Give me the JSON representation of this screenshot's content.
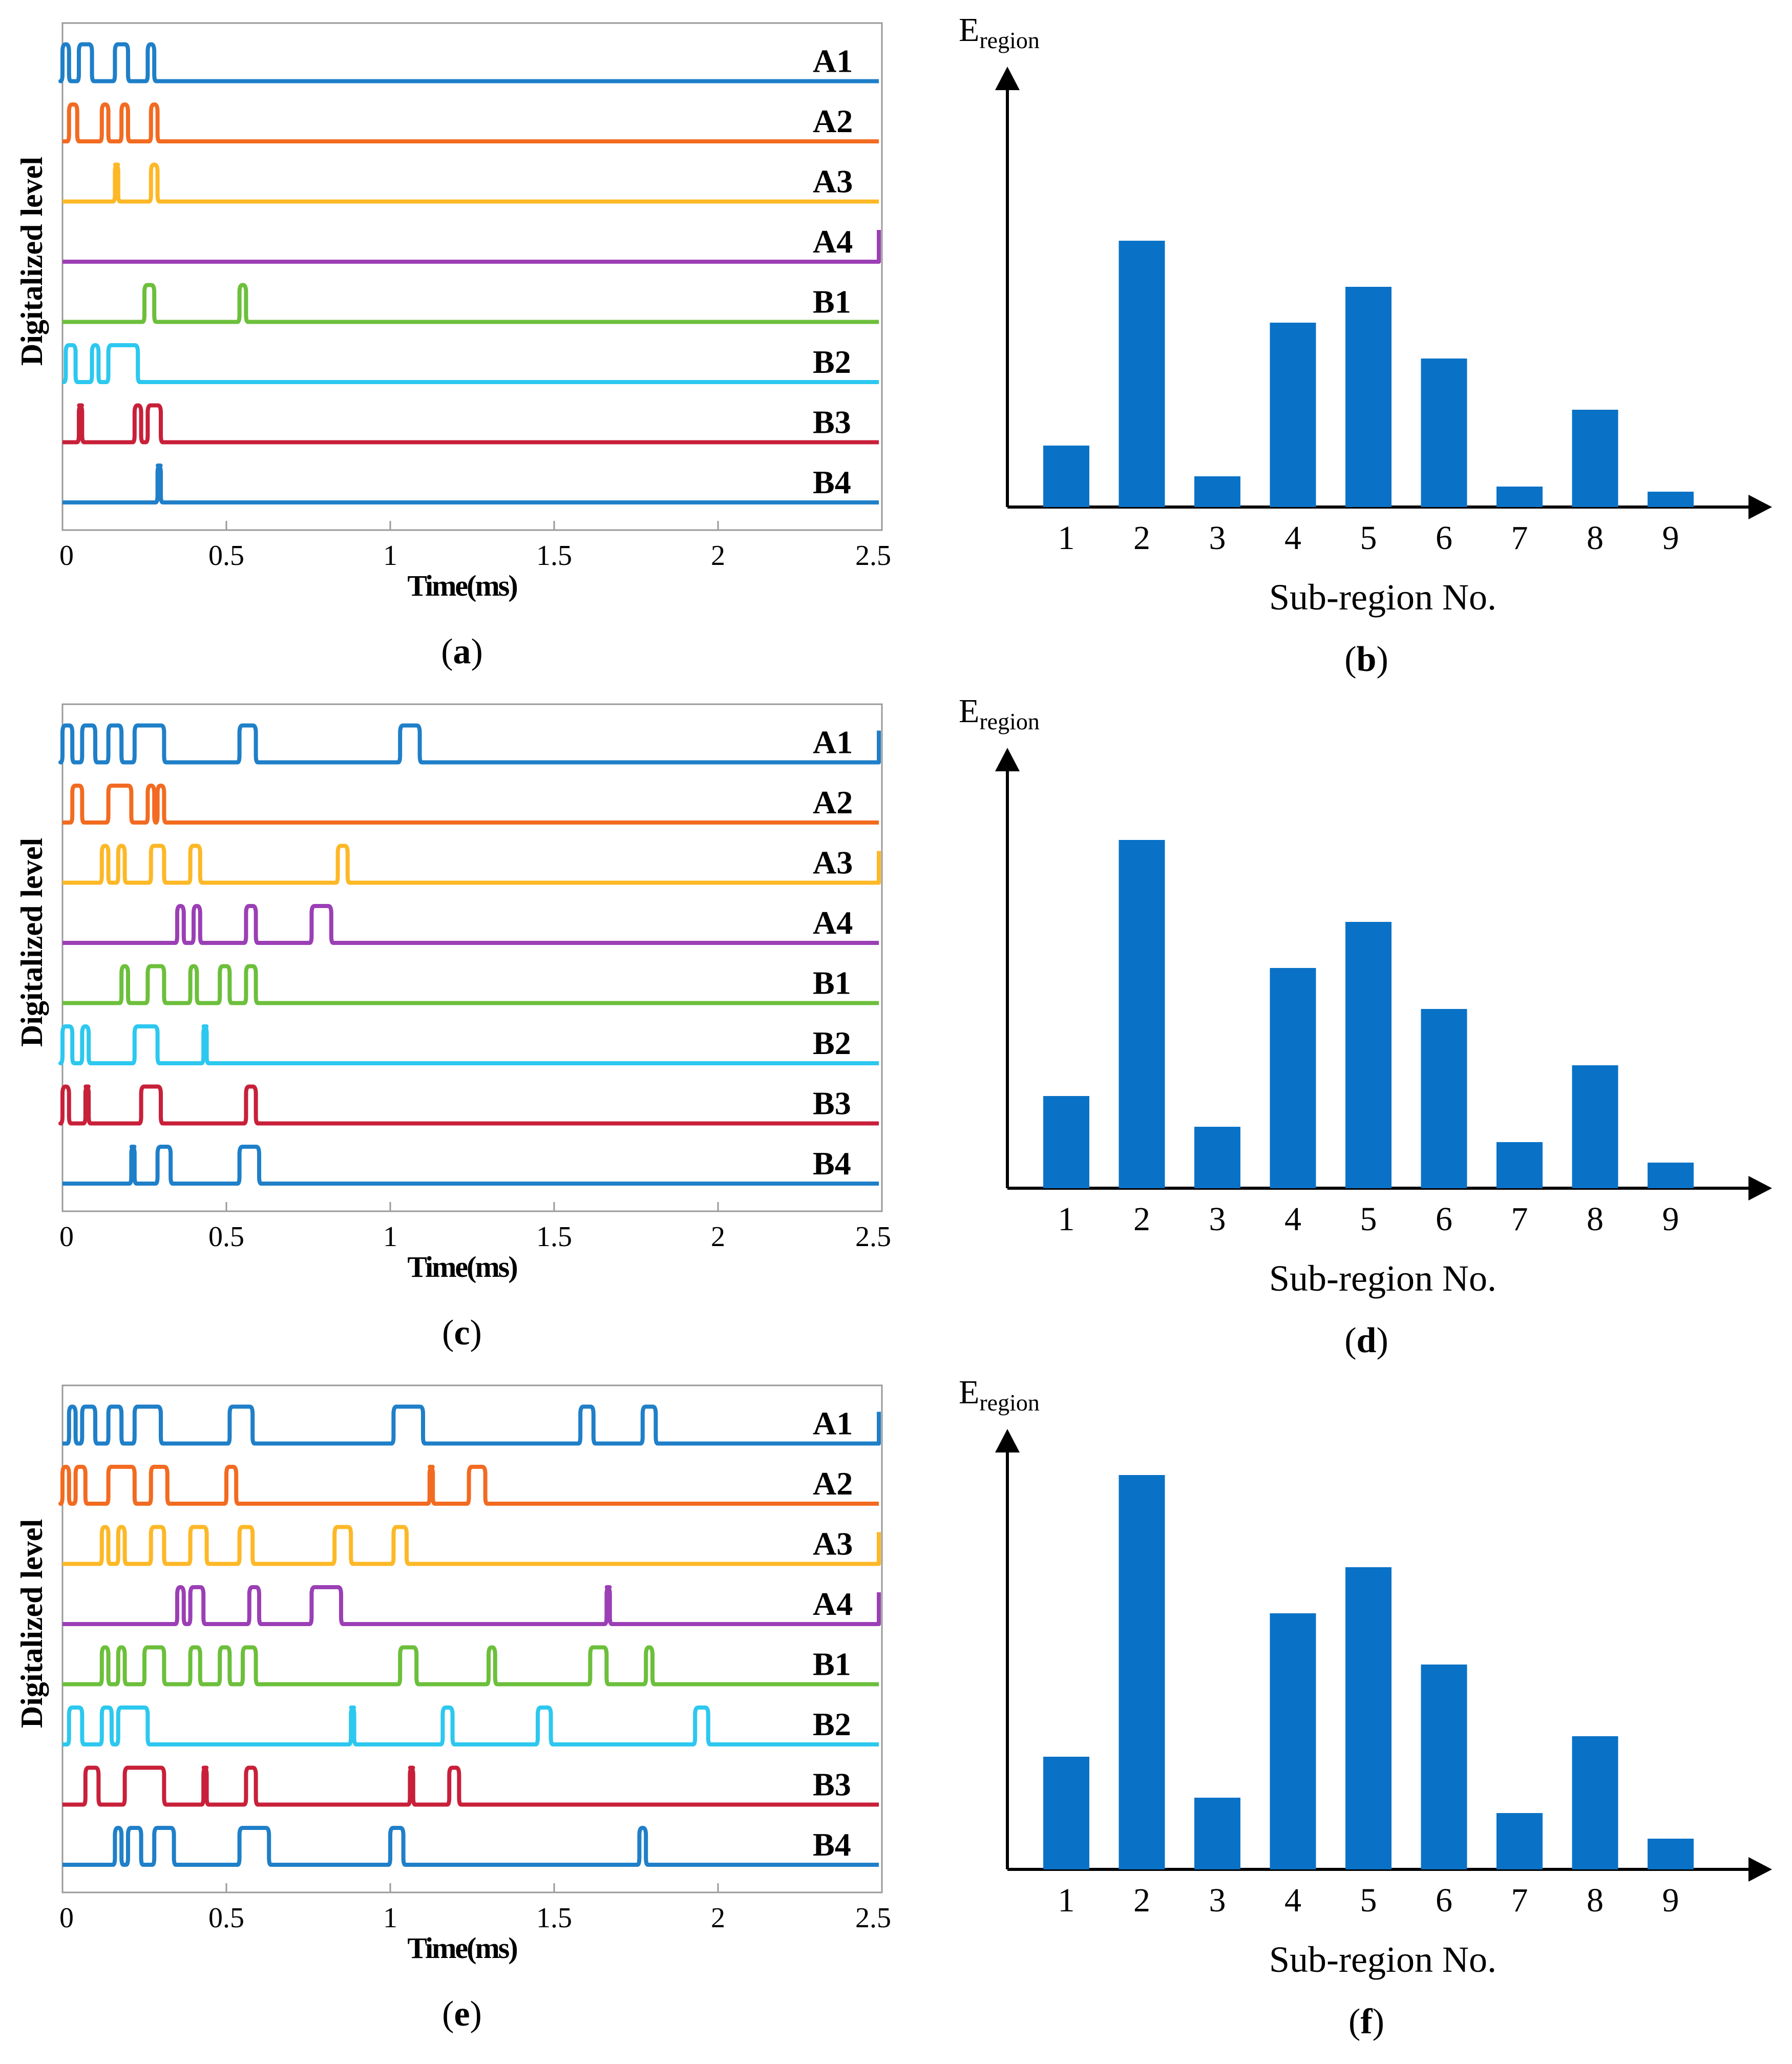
{
  "figure": {
    "colors": {
      "A1": "#1f7fc8",
      "A2": "#f26b21",
      "A3": "#fdb827",
      "A4": "#9b3fb5",
      "B1": "#6cbf3b",
      "B2": "#2cc8ef",
      "B3": "#c8203a",
      "B4": "#1f7fc8",
      "bar": "#0a72c6"
    }
  },
  "chart_data": [
    {
      "type": "line",
      "label": "(a)",
      "panel_letter": "a",
      "xlabel": "Time(ms)",
      "ylabel": "Digitalized  level",
      "xlim": [
        0,
        2.5
      ],
      "xticks": [
        0,
        0.5,
        1,
        1.5,
        2,
        2.5
      ],
      "xtick_labels": [
        "0",
        "0.5",
        "1",
        "1.5",
        "2",
        "2.5"
      ],
      "series": [
        {
          "name": "A1",
          "pulses": [
            [
              0.0,
              0.02
            ],
            [
              0.05,
              0.09
            ],
            [
              0.16,
              0.2
            ],
            [
              0.26,
              0.28
            ]
          ],
          "end_rise": false
        },
        {
          "name": "A2",
          "pulses": [
            [
              0.02,
              0.045
            ],
            [
              0.12,
              0.14
            ],
            [
              0.18,
              0.2
            ],
            [
              0.27,
              0.29
            ]
          ],
          "end_rise": false
        },
        {
          "name": "A3",
          "pulses": [
            [
              0.16,
              0.17
            ],
            [
              0.27,
              0.29
            ]
          ],
          "end_rise": false
        },
        {
          "name": "A4",
          "pulses": [],
          "end_rise": true
        },
        {
          "name": "B1",
          "pulses": [
            [
              0.25,
              0.28
            ],
            [
              0.54,
              0.56
            ]
          ],
          "end_rise": false
        },
        {
          "name": "B2",
          "pulses": [
            [
              0.01,
              0.04
            ],
            [
              0.09,
              0.11
            ],
            [
              0.14,
              0.23
            ]
          ],
          "end_rise": false
        },
        {
          "name": "B3",
          "pulses": [
            [
              0.05,
              0.06
            ],
            [
              0.22,
              0.24
            ],
            [
              0.26,
              0.3
            ]
          ],
          "end_rise": false
        },
        {
          "name": "B4",
          "pulses": [
            [
              0.29,
              0.3
            ]
          ],
          "end_rise": false
        }
      ]
    },
    {
      "type": "bar",
      "label": "(b)",
      "panel_letter": "b",
      "ylabel_main": "E",
      "ylabel_sub": "region",
      "xlabel": "Sub-region No.",
      "categories": [
        "1",
        "2",
        "3",
        "4",
        "5",
        "6",
        "7",
        "8",
        "9"
      ],
      "values": [
        0.12,
        0.52,
        0.06,
        0.36,
        0.43,
        0.29,
        0.04,
        0.19,
        0.03
      ],
      "ylim": [
        0,
        0.8
      ]
    },
    {
      "type": "line",
      "label": "(c)",
      "panel_letter": "c",
      "xlabel": "Time(ms)",
      "ylabel": "Digitalized  level",
      "xlim": [
        0,
        2.5
      ],
      "xticks": [
        0,
        0.5,
        1,
        1.5,
        2,
        2.5
      ],
      "xtick_labels": [
        "0",
        "0.5",
        "1",
        "1.5",
        "2",
        "2.5"
      ],
      "series": [
        {
          "name": "A1",
          "pulses": [
            [
              0.0,
              0.03
            ],
            [
              0.06,
              0.1
            ],
            [
              0.14,
              0.18
            ],
            [
              0.22,
              0.31
            ],
            [
              0.54,
              0.59
            ],
            [
              1.03,
              1.09
            ]
          ],
          "end_rise": true
        },
        {
          "name": "A2",
          "pulses": [
            [
              0.03,
              0.06
            ],
            [
              0.14,
              0.21
            ],
            [
              0.26,
              0.28
            ],
            [
              0.29,
              0.31
            ]
          ],
          "end_rise": false
        },
        {
          "name": "A3",
          "pulses": [
            [
              0.12,
              0.14
            ],
            [
              0.17,
              0.19
            ],
            [
              0.27,
              0.31
            ],
            [
              0.39,
              0.42
            ],
            [
              0.84,
              0.87
            ]
          ],
          "end_rise": true
        },
        {
          "name": "A4",
          "pulses": [
            [
              0.35,
              0.37
            ],
            [
              0.4,
              0.42
            ],
            [
              0.56,
              0.59
            ],
            [
              0.76,
              0.82
            ]
          ],
          "end_rise": false
        },
        {
          "name": "B1",
          "pulses": [
            [
              0.18,
              0.2
            ],
            [
              0.26,
              0.31
            ],
            [
              0.39,
              0.41
            ],
            [
              0.48,
              0.51
            ],
            [
              0.56,
              0.59
            ]
          ],
          "end_rise": false
        },
        {
          "name": "B2",
          "pulses": [
            [
              0.0,
              0.03
            ],
            [
              0.06,
              0.08
            ],
            [
              0.22,
              0.29
            ],
            [
              0.43,
              0.44
            ]
          ],
          "end_rise": false
        },
        {
          "name": "B3",
          "pulses": [
            [
              0.0,
              0.02
            ],
            [
              0.07,
              0.08
            ],
            [
              0.24,
              0.3
            ],
            [
              0.56,
              0.59
            ]
          ],
          "end_rise": false
        },
        {
          "name": "B4",
          "pulses": [
            [
              0.21,
              0.22
            ],
            [
              0.29,
              0.33
            ],
            [
              0.54,
              0.6
            ]
          ],
          "end_rise": false
        }
      ]
    },
    {
      "type": "bar",
      "label": "(d)",
      "panel_letter": "d",
      "ylabel_main": "E",
      "ylabel_sub": "region",
      "xlabel": "Sub-region No.",
      "categories": [
        "1",
        "2",
        "3",
        "4",
        "5",
        "6",
        "7",
        "8",
        "9"
      ],
      "values": [
        0.18,
        0.68,
        0.12,
        0.43,
        0.52,
        0.35,
        0.09,
        0.24,
        0.05
      ],
      "ylim": [
        0,
        0.8
      ]
    },
    {
      "type": "line",
      "label": "(e)",
      "panel_letter": "e",
      "xlabel": "Time(ms)",
      "ylabel": "Digitalized  level",
      "xlim": [
        0,
        2.5
      ],
      "xticks": [
        0,
        0.5,
        1,
        1.5,
        2,
        2.5
      ],
      "xtick_labels": [
        "0",
        "0.5",
        "1",
        "1.5",
        "2",
        "2.5"
      ],
      "series": [
        {
          "name": "A1",
          "pulses": [
            [
              0.02,
              0.04
            ],
            [
              0.06,
              0.1
            ],
            [
              0.14,
              0.18
            ],
            [
              0.22,
              0.3
            ],
            [
              0.51,
              0.58
            ],
            [
              1.01,
              1.1
            ],
            [
              1.58,
              1.62
            ],
            [
              1.77,
              1.81
            ]
          ],
          "end_rise": true
        },
        {
          "name": "A2",
          "pulses": [
            [
              0.0,
              0.02
            ],
            [
              0.04,
              0.07
            ],
            [
              0.14,
              0.22
            ],
            [
              0.27,
              0.32
            ],
            [
              0.5,
              0.53
            ],
            [
              1.12,
              1.13
            ],
            [
              1.24,
              1.29
            ]
          ],
          "end_rise": false
        },
        {
          "name": "A3",
          "pulses": [
            [
              0.12,
              0.14
            ],
            [
              0.17,
              0.19
            ],
            [
              0.27,
              0.31
            ],
            [
              0.39,
              0.44
            ],
            [
              0.54,
              0.58
            ],
            [
              0.83,
              0.88
            ],
            [
              1.01,
              1.05
            ]
          ],
          "end_rise": true
        },
        {
          "name": "A4",
          "pulses": [
            [
              0.35,
              0.37
            ],
            [
              0.39,
              0.43
            ],
            [
              0.57,
              0.6
            ],
            [
              0.76,
              0.85
            ],
            [
              1.66,
              1.67
            ]
          ],
          "end_rise": true
        },
        {
          "name": "B1",
          "pulses": [
            [
              0.12,
              0.14
            ],
            [
              0.17,
              0.19
            ],
            [
              0.25,
              0.31
            ],
            [
              0.39,
              0.42
            ],
            [
              0.48,
              0.51
            ],
            [
              0.55,
              0.59
            ],
            [
              1.03,
              1.08
            ],
            [
              1.3,
              1.32
            ],
            [
              1.61,
              1.66
            ],
            [
              1.78,
              1.8
            ]
          ],
          "end_rise": false
        },
        {
          "name": "B2",
          "pulses": [
            [
              0.02,
              0.06
            ],
            [
              0.12,
              0.15
            ],
            [
              0.17,
              0.26
            ],
            [
              0.88,
              0.89
            ],
            [
              1.16,
              1.19
            ],
            [
              1.45,
              1.49
            ],
            [
              1.93,
              1.97
            ]
          ],
          "end_rise": false
        },
        {
          "name": "B3",
          "pulses": [
            [
              0.07,
              0.11
            ],
            [
              0.19,
              0.31
            ],
            [
              0.43,
              0.44
            ],
            [
              0.56,
              0.59
            ],
            [
              1.06,
              1.07
            ],
            [
              1.18,
              1.21
            ]
          ],
          "end_rise": false
        },
        {
          "name": "B4",
          "pulses": [
            [
              0.16,
              0.18
            ],
            [
              0.2,
              0.24
            ],
            [
              0.28,
              0.34
            ],
            [
              0.54,
              0.63
            ],
            [
              1.0,
              1.04
            ],
            [
              1.76,
              1.78
            ]
          ],
          "end_rise": false
        }
      ]
    },
    {
      "type": "bar",
      "label": "(f)",
      "panel_letter": "f",
      "ylabel_main": "E",
      "ylabel_sub": "region",
      "xlabel": "Sub-region No.",
      "categories": [
        "1",
        "2",
        "3",
        "4",
        "5",
        "6",
        "7",
        "8",
        "9"
      ],
      "values": [
        0.22,
        0.77,
        0.14,
        0.5,
        0.59,
        0.4,
        0.11,
        0.26,
        0.06
      ],
      "ylim": [
        0,
        0.8
      ]
    }
  ]
}
